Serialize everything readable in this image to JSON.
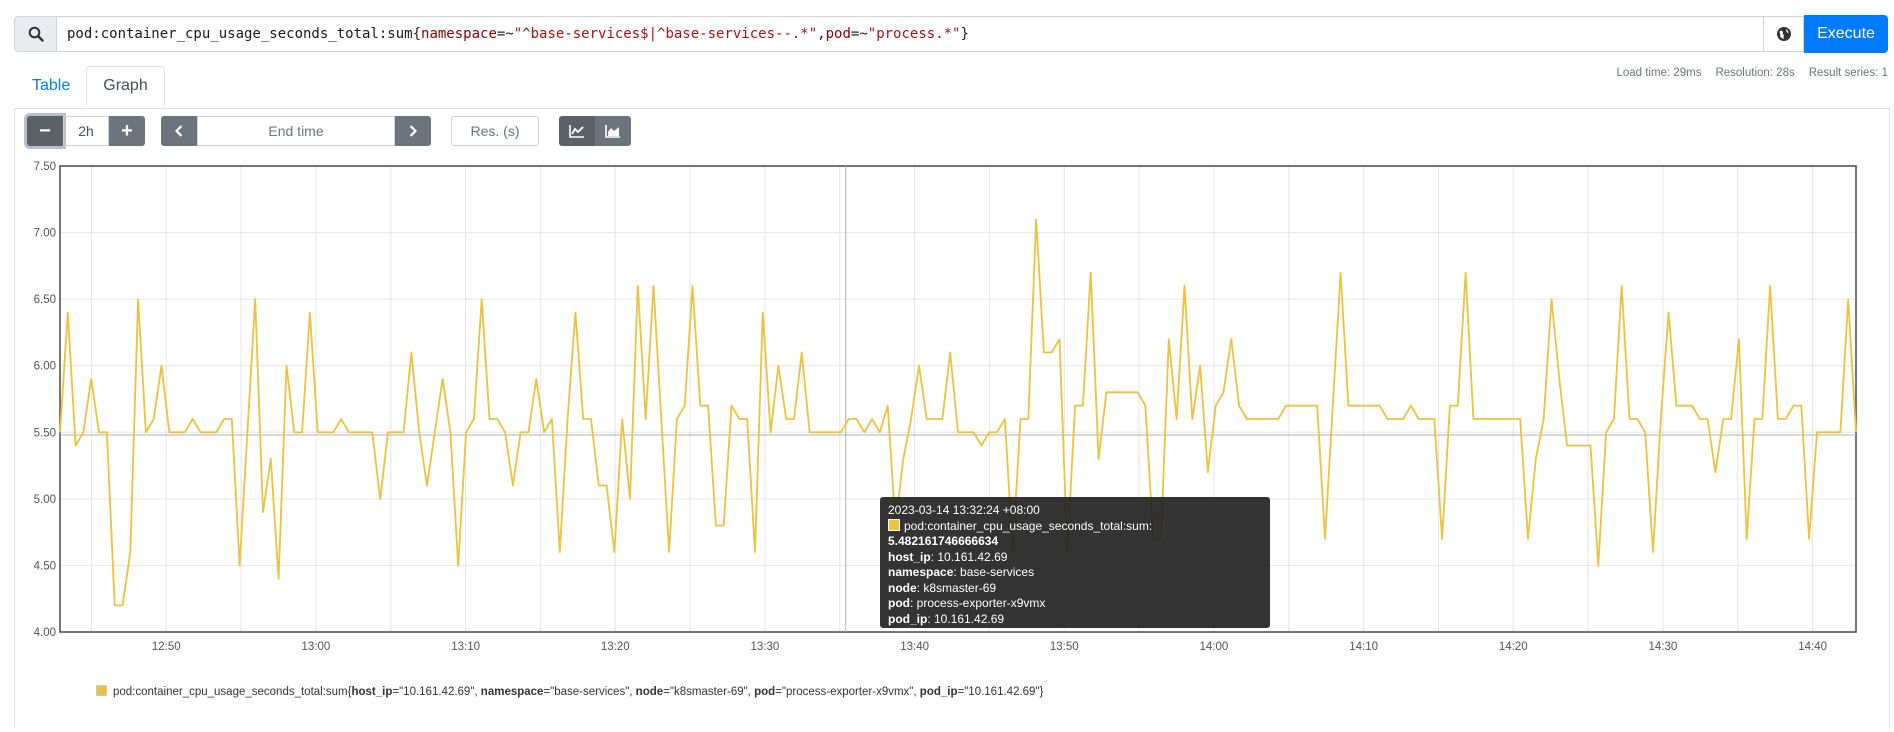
{
  "query": {
    "metric": "pod:container_cpu_usage_seconds_total:sum",
    "open_brace": "{",
    "label1": "namespace",
    "op1": "=~",
    "value1": "\"^base-services$|^base-services--.*\"",
    "sep": ", ",
    "label2": "pod",
    "op2": "=~",
    "value2": "\"process.*\"",
    "close_brace": "}",
    "execute_label": "Execute"
  },
  "tabs": [
    {
      "label": "Table",
      "active": false
    },
    {
      "label": "Graph",
      "active": true
    }
  ],
  "stats": {
    "load_time": "Load time: 29ms",
    "resolution": "Resolution: 28s",
    "result_series": "Result series: 1"
  },
  "controls": {
    "minus": "−",
    "range": "2h",
    "plus": "+",
    "prev": "‹",
    "end_time_placeholder": "End time",
    "next": "›",
    "res_placeholder": "Res. (s)",
    "icons": [
      "stacked-off-icon",
      "stacked-on-icon"
    ]
  },
  "colors": {
    "series": "#edc240",
    "accent": "#007bff",
    "button": "#6c757d"
  },
  "chart_data": {
    "type": "line",
    "y_ticks": [
      "4.00",
      "4.50",
      "5.00",
      "5.50",
      "6.00",
      "6.50",
      "7.00",
      "7.50"
    ],
    "ylim": [
      4.0,
      7.5
    ],
    "x_ticks": [
      "12:50",
      "13:00",
      "13:10",
      "13:20",
      "13:30",
      "13:40",
      "13:50",
      "14:00",
      "14:10",
      "14:20",
      "14:30",
      "14:40"
    ],
    "xlim_minutes_from_1240": [
      2.9,
      122.9
    ],
    "grid": true,
    "crosshair_minute": 55.4,
    "crosshair_value": 5.48,
    "series": [
      {
        "name": "pod:container_cpu_usage_seconds_total:sum",
        "values": [
          5.5,
          6.4,
          5.4,
          5.5,
          5.9,
          5.5,
          5.5,
          4.2,
          4.2,
          4.6,
          6.5,
          5.5,
          5.6,
          6.0,
          5.5,
          5.5,
          5.5,
          5.6,
          5.5,
          5.5,
          5.5,
          5.6,
          5.6,
          4.5,
          5.5,
          6.5,
          4.9,
          5.3,
          4.4,
          6.0,
          5.5,
          5.5,
          6.4,
          5.5,
          5.5,
          5.5,
          5.6,
          5.5,
          5.5,
          5.5,
          5.5,
          5.0,
          5.5,
          5.5,
          5.5,
          6.1,
          5.5,
          5.1,
          5.5,
          5.9,
          5.5,
          4.5,
          5.5,
          5.6,
          6.5,
          5.6,
          5.6,
          5.5,
          5.1,
          5.5,
          5.5,
          5.9,
          5.5,
          5.6,
          4.6,
          5.6,
          6.4,
          5.6,
          5.6,
          5.1,
          5.1,
          4.6,
          5.6,
          5.0,
          6.6,
          5.6,
          6.6,
          5.6,
          4.6,
          5.6,
          5.7,
          6.6,
          5.7,
          5.7,
          4.8,
          4.8,
          5.7,
          5.6,
          5.6,
          4.6,
          6.4,
          5.5,
          6.0,
          5.6,
          5.6,
          6.1,
          5.5,
          5.5,
          5.5,
          5.5,
          5.5,
          5.6,
          5.6,
          5.5,
          5.6,
          5.5,
          5.7,
          4.8,
          5.3,
          5.6,
          6.0,
          5.6,
          5.6,
          5.6,
          6.1,
          5.5,
          5.5,
          5.5,
          5.4,
          5.5,
          5.5,
          5.6,
          4.6,
          5.6,
          5.6,
          7.1,
          6.1,
          6.1,
          6.2,
          4.6,
          5.7,
          5.7,
          6.7,
          5.3,
          5.8,
          5.8,
          5.8,
          5.8,
          5.8,
          5.7,
          4.7,
          4.7,
          6.2,
          5.6,
          6.6,
          5.6,
          6.0,
          5.2,
          5.7,
          5.8,
          6.2,
          5.7,
          5.6,
          5.6,
          5.6,
          5.6,
          5.6,
          5.7,
          5.7,
          5.7,
          5.7,
          5.7,
          4.7,
          5.7,
          6.7,
          5.7,
          5.7,
          5.7,
          5.7,
          5.7,
          5.6,
          5.6,
          5.6,
          5.7,
          5.6,
          5.6,
          5.6,
          4.7,
          5.7,
          5.7,
          6.7,
          5.6,
          5.6,
          5.6,
          5.6,
          5.6,
          5.6,
          5.6,
          4.7,
          5.3,
          5.6,
          6.5,
          5.9,
          5.4,
          5.4,
          5.4,
          5.4,
          4.5,
          5.5,
          5.6,
          6.6,
          5.6,
          5.6,
          5.5,
          4.6,
          5.6,
          6.4,
          5.7,
          5.7,
          5.7,
          5.6,
          5.6,
          5.2,
          5.6,
          5.6,
          6.2,
          4.7,
          5.6,
          5.6,
          6.6,
          5.6,
          5.6,
          5.7,
          5.7,
          4.7,
          5.5,
          5.5,
          5.5,
          5.5,
          6.5,
          5.5
        ]
      }
    ]
  },
  "tooltip": {
    "time": "2023-03-14 13:32:24 +08:00",
    "series_label": "pod:container_cpu_usage_seconds_total:sum:",
    "series_value": "5.482161746666634",
    "labels": [
      {
        "key": "host_ip",
        "value": "10.161.42.69"
      },
      {
        "key": "namespace",
        "value": "base-services"
      },
      {
        "key": "node",
        "value": "k8smaster-69"
      },
      {
        "key": "pod",
        "value": "process-exporter-x9vmx"
      },
      {
        "key": "pod_ip",
        "value": "10.161.42.69"
      }
    ]
  },
  "legend": {
    "metric": "pod:container_cpu_usage_seconds_total:sum",
    "items": [
      {
        "key": "host_ip",
        "value": "\"10.161.42.69\""
      },
      {
        "key": "namespace",
        "value": "\"base-services\""
      },
      {
        "key": "node",
        "value": "\"k8smaster-69\""
      },
      {
        "key": "pod",
        "value": "\"process-exporter-x9vmx\""
      },
      {
        "key": "pod_ip",
        "value": "\"10.161.42.69\""
      }
    ]
  }
}
